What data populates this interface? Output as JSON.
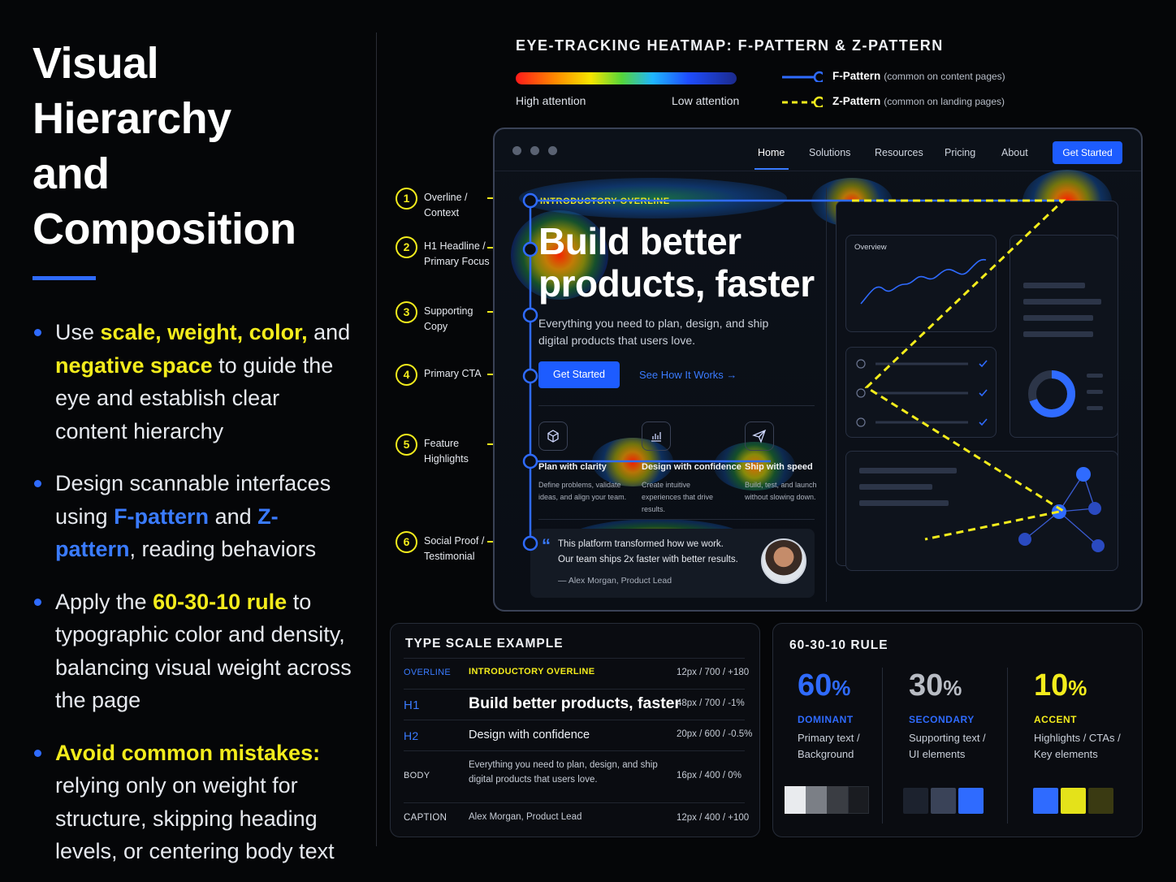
{
  "title": {
    "line1": "Visual Hierarchy",
    "line2": "and Composition"
  },
  "bullets": [
    {
      "parts": [
        [
          "Use ",
          ""
        ],
        [
          "scale, weight, color,",
          "y"
        ],
        [
          " and ",
          ""
        ],
        [
          "negative space",
          "y"
        ],
        [
          " to guide the eye and establish clear content hierarchy",
          ""
        ]
      ]
    },
    {
      "parts": [
        [
          "Design scannable interfaces using ",
          ""
        ],
        [
          "F-pattern",
          "b"
        ],
        [
          " and ",
          ""
        ],
        [
          "Z-pattern",
          "b"
        ],
        [
          ", reading behaviors",
          ""
        ]
      ]
    },
    {
      "parts": [
        [
          "Apply the ",
          ""
        ],
        [
          "60-30-10 rule",
          "y"
        ],
        [
          " to typographic color and density, balancing visual weight across the page",
          ""
        ]
      ]
    },
    {
      "parts": [
        [
          "Avoid common mistakes:",
          "y"
        ],
        [
          " relying only on weight for structure, skipping heading levels, or centering body text",
          ""
        ]
      ]
    }
  ],
  "heatmap": {
    "title": "EYE-TRACKING HEATMAP: F-PATTERN & Z-PATTERN",
    "high_label": "High attention",
    "low_label": "Low attention",
    "f_pattern": {
      "name": "F-Pattern",
      "note": "(common on content pages)",
      "color": "#2f6bff"
    },
    "z_pattern": {
      "name": "Z-Pattern",
      "note": "(common on landing pages)",
      "color": "#f3ec1c"
    }
  },
  "annotations": [
    {
      "num": "1",
      "label": "Overline / Context"
    },
    {
      "num": "2",
      "label": "H1 Headline / Primary Focus"
    },
    {
      "num": "3",
      "label": "Supporting Copy"
    },
    {
      "num": "4",
      "label": "Primary CTA"
    },
    {
      "num": "5",
      "label": "Feature Highlights"
    },
    {
      "num": "6",
      "label": "Social Proof / Testimonial"
    }
  ],
  "mockup": {
    "nav": [
      "Home",
      "Solutions",
      "Resources",
      "Pricing",
      "About"
    ],
    "nav_cta": "Get Started",
    "overline": "INTRODUCTORY OVERLINE",
    "headline": "Build better products, faster",
    "subcopy": "Everything you need to plan, design, and ship digital products that users love.",
    "cta_primary": "Get Started",
    "cta_secondary": "See How It Works  →",
    "features": [
      {
        "icon": "cube-icon",
        "title": "Plan with clarity",
        "desc": "Define problems, validate ideas, and align your team."
      },
      {
        "icon": "bar-chart-icon",
        "title": "Design with confidence",
        "desc": "Create intuitive experiences that drive results."
      },
      {
        "icon": "send-icon",
        "title": "Ship with speed",
        "desc": "Build, test, and launch without slowing down."
      }
    ],
    "testimonial": {
      "line1": "This platform transformed how we work.",
      "line2": "Our team ships 2x faster with better results.",
      "author": "— Alex Morgan, Product Lead"
    },
    "overview_label": "Overview"
  },
  "type_scale": {
    "title": "TYPE SCALE EXAMPLE",
    "rows": [
      {
        "label": "OVERLINE",
        "sample": "INTRODUCTORY OVERLINE",
        "spec": "12px / 700 / +180"
      },
      {
        "label": "H1",
        "sample": "Build better products, faster",
        "spec": "48px / 700 / -1%"
      },
      {
        "label": "H2",
        "sample": "Design with confidence",
        "spec": "20px / 600 / -0.5%"
      },
      {
        "label": "BODY",
        "sample": "Everything you need to plan, design, and ship digital products that users love.",
        "spec": "16px / 400 / 0%"
      },
      {
        "label": "CAPTION",
        "sample": "Alex Morgan, Product Lead",
        "spec": "12px / 400 / +100"
      }
    ]
  },
  "rule_60_30_10": {
    "title": "60-30-10 RULE",
    "columns": [
      {
        "pct": "60",
        "unit": "%",
        "name": "DOMINANT",
        "desc": "Primary text / Background",
        "color": "#2f6bff",
        "pct_color": "#2f6bff",
        "swatches": [
          "#e9ebee",
          "#7b7f86",
          "#3a3d43",
          "#1a1c21"
        ]
      },
      {
        "pct": "30",
        "unit": "%",
        "name": "SECONDARY",
        "desc": "Supporting text / UI elements",
        "color": "#2f6bff",
        "pct_color": "#b8bcc4",
        "swatches": [
          "#1c222e",
          "#3a4358",
          "#2f6bff"
        ]
      },
      {
        "pct": "10",
        "unit": "%",
        "name": "ACCENT",
        "desc": "Highlights / CTAs / Key elements",
        "color": "#f3ec1c",
        "pct_color": "#f3ec1c",
        "swatches": [
          "#2f6bff",
          "#e4e21a",
          "#3a3a12"
        ]
      }
    ]
  }
}
